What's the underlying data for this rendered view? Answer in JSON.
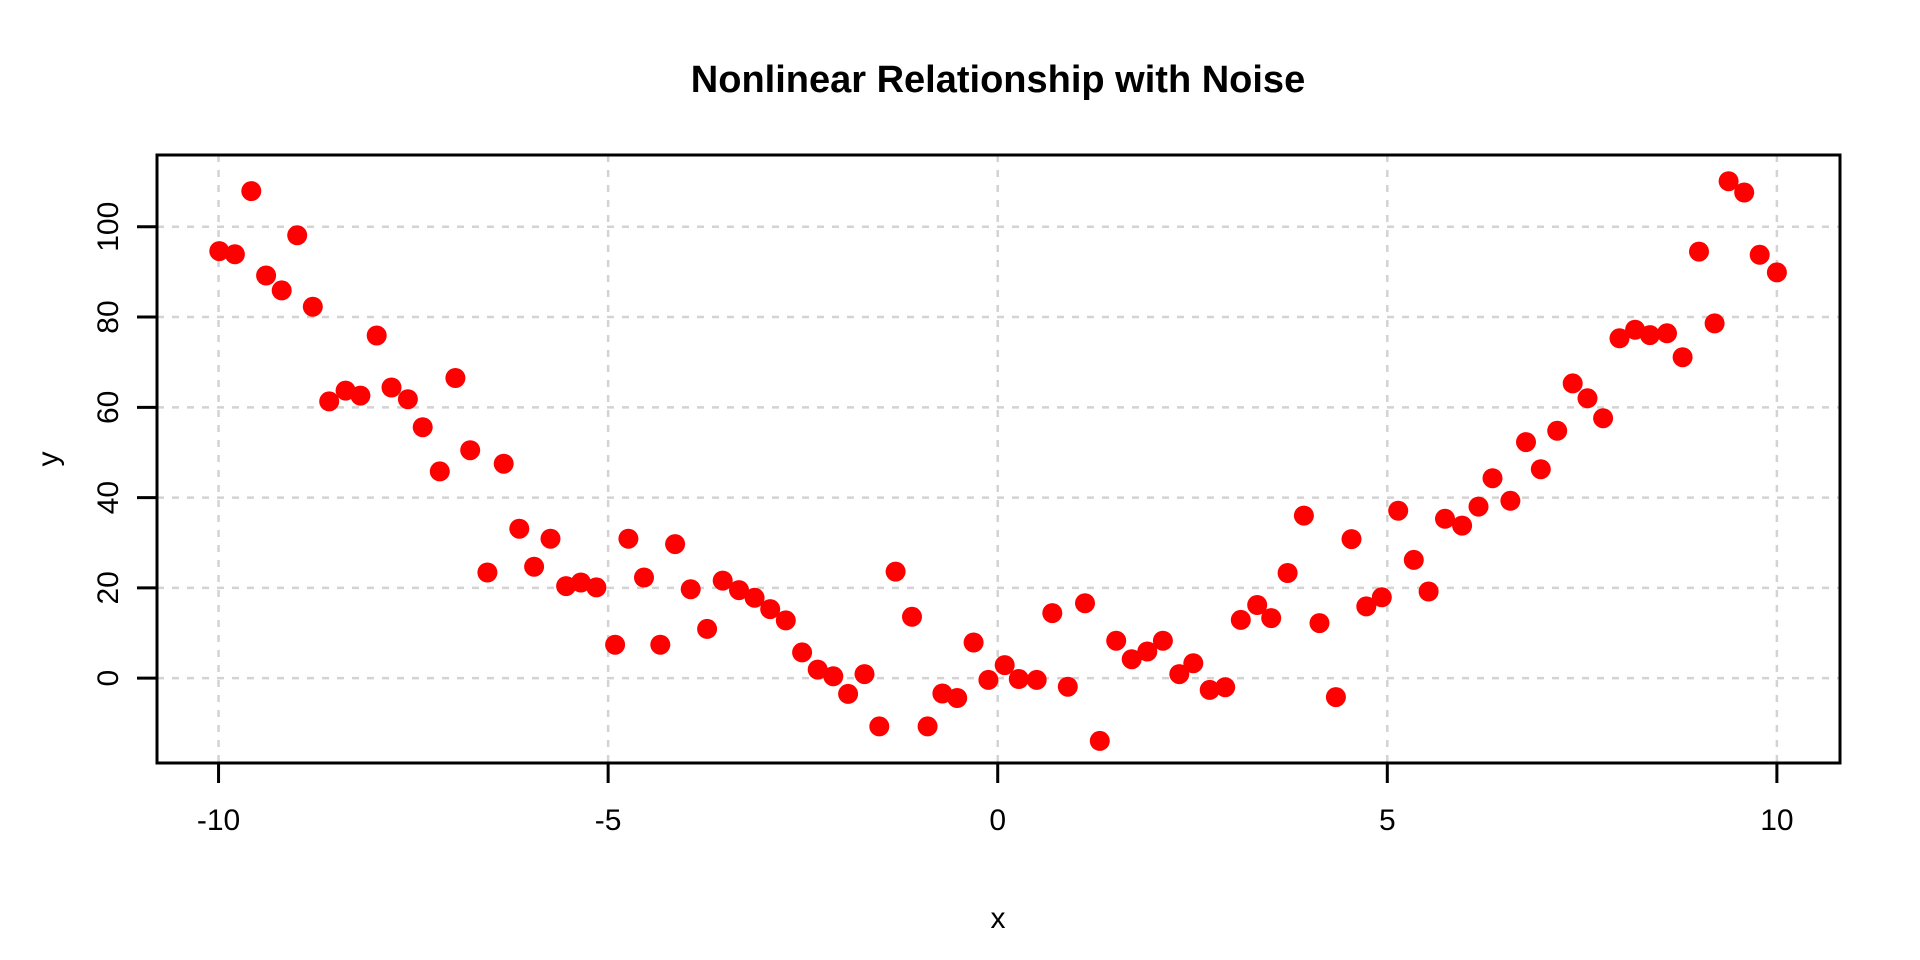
{
  "figure": {
    "title": "Nonlinear Relationship with Noise",
    "x_axis_label": "x",
    "y_axis_label": "y"
  },
  "chart_data": {
    "type": "scatter",
    "title": "Nonlinear Relationship with Noise",
    "xlabel": "x",
    "ylabel": "y",
    "x_ticks": [
      -10,
      -5,
      0,
      5,
      10
    ],
    "y_ticks": [
      0,
      20,
      40,
      60,
      80,
      100
    ],
    "xlim": [
      -10.79,
      10.81
    ],
    "ylim": [
      -18.8,
      115.9
    ],
    "grid": true,
    "grid_style": "dashed",
    "grid_color": "#d3d3d3",
    "axis_color": "#000000",
    "background": "#ffffff",
    "marker": {
      "shape": "circle",
      "color": "#ff0000",
      "radius_px": 10
    },
    "points": [
      [
        -9.99,
        94.6
      ],
      [
        -9.79,
        93.9
      ],
      [
        -9.58,
        107.9
      ],
      [
        -9.39,
        89.2
      ],
      [
        -9.19,
        85.9
      ],
      [
        -8.99,
        98.1
      ],
      [
        -8.79,
        82.3
      ],
      [
        -8.58,
        61.3
      ],
      [
        -8.37,
        63.7
      ],
      [
        -8.18,
        62.6
      ],
      [
        -7.97,
        75.9
      ],
      [
        -7.78,
        64.4
      ],
      [
        -7.57,
        61.8
      ],
      [
        -7.38,
        55.6
      ],
      [
        -7.16,
        45.8
      ],
      [
        -6.96,
        66.5
      ],
      [
        -6.77,
        50.5
      ],
      [
        -6.55,
        23.4
      ],
      [
        -6.34,
        47.5
      ],
      [
        -6.14,
        33.1
      ],
      [
        -5.95,
        24.7
      ],
      [
        -5.74,
        30.9
      ],
      [
        -5.54,
        20.4
      ],
      [
        -5.35,
        21.2
      ],
      [
        -5.15,
        20.1
      ],
      [
        -4.91,
        7.4
      ],
      [
        -4.74,
        30.9
      ],
      [
        -4.54,
        22.3
      ],
      [
        -4.33,
        7.4
      ],
      [
        -4.14,
        29.7
      ],
      [
        -3.94,
        19.7
      ],
      [
        -3.73,
        10.9
      ],
      [
        -3.53,
        21.6
      ],
      [
        -3.32,
        19.5
      ],
      [
        -3.12,
        17.8
      ],
      [
        -2.92,
        15.3
      ],
      [
        -2.72,
        12.8
      ],
      [
        -2.51,
        5.7
      ],
      [
        -2.31,
        1.9
      ],
      [
        -2.11,
        0.4
      ],
      [
        -1.92,
        -3.5
      ],
      [
        -1.71,
        0.9
      ],
      [
        -1.52,
        -10.7
      ],
      [
        -1.31,
        23.6
      ],
      [
        -1.1,
        13.6
      ],
      [
        -0.9,
        -10.7
      ],
      [
        -0.71,
        -3.4
      ],
      [
        -0.52,
        -4.4
      ],
      [
        -0.31,
        7.9
      ],
      [
        -0.12,
        -0.4
      ],
      [
        0.09,
        2.9
      ],
      [
        0.27,
        -0.2
      ],
      [
        0.5,
        -0.4
      ],
      [
        0.7,
        14.4
      ],
      [
        0.9,
        -1.9
      ],
      [
        1.12,
        16.6
      ],
      [
        1.31,
        -13.9
      ],
      [
        1.52,
        8.3
      ],
      [
        1.72,
        4.2
      ],
      [
        1.92,
        5.9
      ],
      [
        2.12,
        8.3
      ],
      [
        2.33,
        0.9
      ],
      [
        2.51,
        3.3
      ],
      [
        2.72,
        -2.6
      ],
      [
        2.92,
        -2.0
      ],
      [
        3.12,
        12.9
      ],
      [
        3.33,
        16.2
      ],
      [
        3.51,
        13.3
      ],
      [
        3.72,
        23.3
      ],
      [
        3.93,
        36.0
      ],
      [
        4.13,
        12.2
      ],
      [
        4.34,
        -4.2
      ],
      [
        4.54,
        30.8
      ],
      [
        4.73,
        15.9
      ],
      [
        4.93,
        17.9
      ],
      [
        5.14,
        37.1
      ],
      [
        5.34,
        26.2
      ],
      [
        5.53,
        19.2
      ],
      [
        5.74,
        35.3
      ],
      [
        5.96,
        33.8
      ],
      [
        6.17,
        38.0
      ],
      [
        6.35,
        44.3
      ],
      [
        6.58,
        39.3
      ],
      [
        6.78,
        52.3
      ],
      [
        6.97,
        46.3
      ],
      [
        7.18,
        54.8
      ],
      [
        7.38,
        65.3
      ],
      [
        7.57,
        62.0
      ],
      [
        7.77,
        57.6
      ],
      [
        7.98,
        75.3
      ],
      [
        8.18,
        77.2
      ],
      [
        8.37,
        76.0
      ],
      [
        8.59,
        76.4
      ],
      [
        8.79,
        71.1
      ],
      [
        9.0,
        94.5
      ],
      [
        9.2,
        78.6
      ],
      [
        9.38,
        110.1
      ],
      [
        9.58,
        107.6
      ],
      [
        9.78,
        93.8
      ],
      [
        10.0,
        89.9
      ]
    ]
  }
}
